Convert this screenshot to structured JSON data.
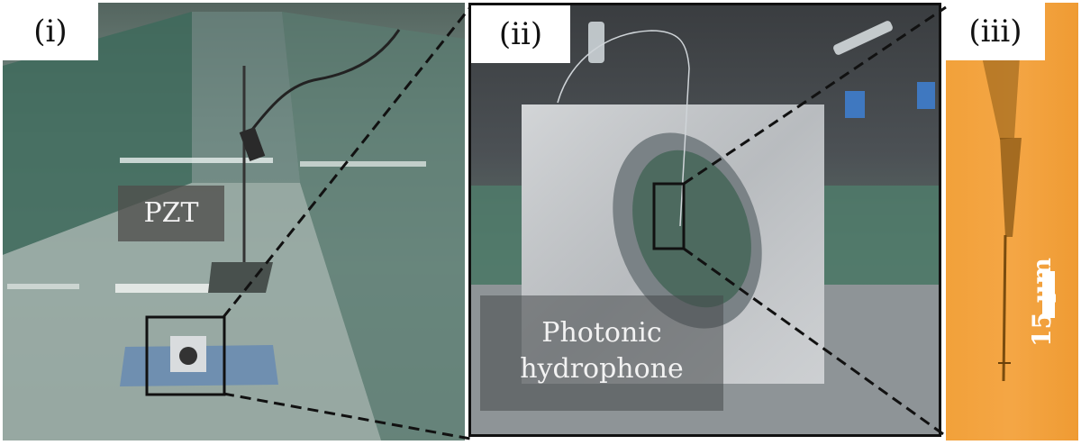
{
  "figure": {
    "panels": [
      {
        "id": "i",
        "label": "(i)",
        "tag": "PZT"
      },
      {
        "id": "ii",
        "label": "(ii)",
        "tag_lines": [
          "Photonic",
          "hydrophone"
        ]
      },
      {
        "id": "iii",
        "label": "(iii)",
        "scale_label": "15 µm"
      }
    ]
  },
  "colors": {
    "tank_water": "#8fa39c",
    "mount_metal": "#c4c7ca",
    "micrograph_orange": "#f4a645",
    "callout_line": "#111111"
  },
  "icons": [
    "zoom-callout-box",
    "dashed-zoom-line"
  ]
}
